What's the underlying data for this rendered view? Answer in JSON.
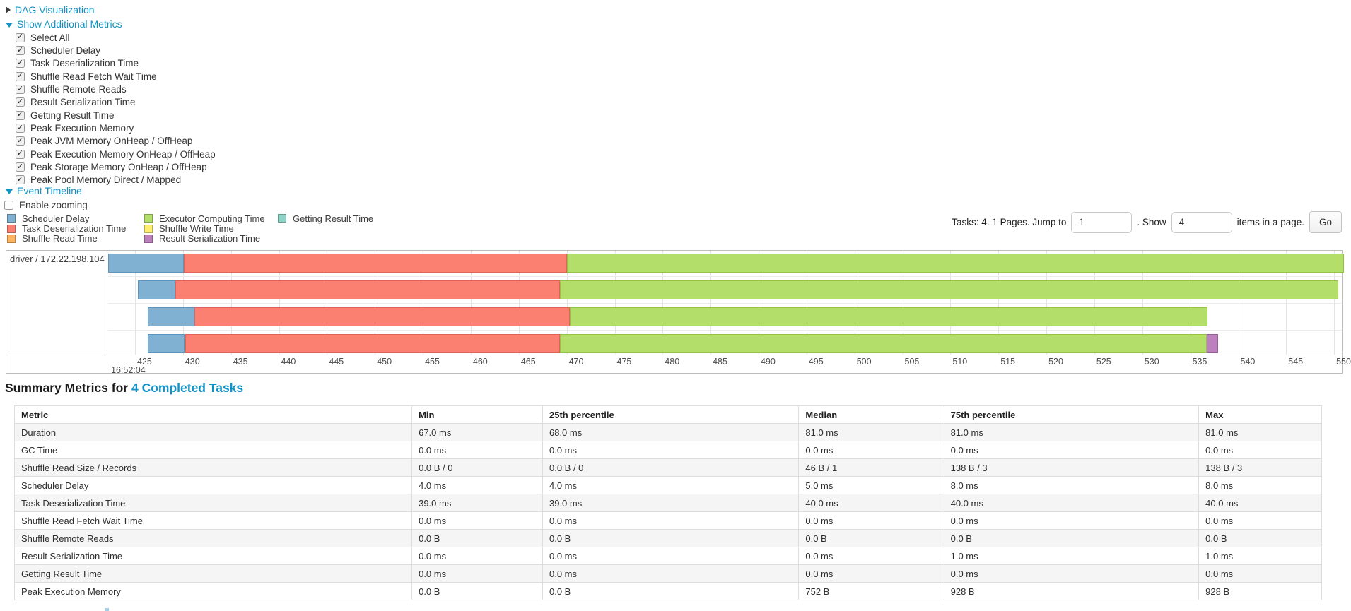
{
  "colors": {
    "link": "#1193c9",
    "table_stripe": "#f5f5f5",
    "table_border": "#dddddd",
    "chart_border": "#bdbdbd",
    "gridline": "#e4e4e4"
  },
  "sections": {
    "dag": {
      "label": "DAG Visualization",
      "expanded": false
    },
    "additional_metrics": {
      "label": "Show Additional Metrics",
      "expanded": true
    },
    "event_timeline": {
      "label": "Event Timeline",
      "expanded": true
    }
  },
  "additional_metrics": {
    "items": [
      {
        "label": "Select All",
        "checked": true
      },
      {
        "label": "Scheduler Delay",
        "checked": true
      },
      {
        "label": "Task Deserialization Time",
        "checked": true
      },
      {
        "label": "Shuffle Read Fetch Wait Time",
        "checked": true
      },
      {
        "label": "Shuffle Remote Reads",
        "checked": true
      },
      {
        "label": "Result Serialization Time",
        "checked": true
      },
      {
        "label": "Getting Result Time",
        "checked": true
      },
      {
        "label": "Peak Execution Memory",
        "checked": true
      },
      {
        "label": "Peak JVM Memory OnHeap / OffHeap",
        "checked": true
      },
      {
        "label": "Peak Execution Memory OnHeap / OffHeap",
        "checked": true
      },
      {
        "label": "Peak Storage Memory OnHeap / OffHeap",
        "checked": true
      },
      {
        "label": "Peak Pool Memory Direct / Mapped",
        "checked": true
      }
    ]
  },
  "enable_zooming": {
    "label": "Enable zooming",
    "checked": false
  },
  "pagination": {
    "prefix": "Tasks: 4. 1 Pages. Jump to",
    "jump_value": "1",
    "middle": ". Show",
    "show_value": "4",
    "suffix": "items in a page.",
    "go_label": "Go"
  },
  "chart_data": {
    "type": "timeline",
    "title": "Event Timeline",
    "group_label": "driver / 172.22.198.104",
    "axis": {
      "major_label": "16:52:04",
      "domain_ms": [
        422.2,
        550.8
      ],
      "tick_start": 425,
      "tick_end": 550,
      "tick_step": 5
    },
    "legend_columns": [
      [
        {
          "label": "Scheduler Delay",
          "type": "scheduler-delay"
        },
        {
          "label": "Task Deserialization Time",
          "type": "task-deserialization"
        },
        {
          "label": "Shuffle Read Time",
          "type": "shuffle-read"
        }
      ],
      [
        {
          "label": "Executor Computing Time",
          "type": "executor-computing"
        },
        {
          "label": "Shuffle Write Time",
          "type": "shuffle-write"
        },
        {
          "label": "Result Serialization Time",
          "type": "result-serialization"
        }
      ],
      [
        {
          "label": "Getting Result Time",
          "type": "getting-result"
        }
      ]
    ],
    "series_colors": {
      "scheduler-delay": {
        "fill": "#80B1D3",
        "border": "#5e93bb"
      },
      "task-deserialization": {
        "fill": "#FB8072",
        "border": "#e0635a"
      },
      "shuffle-read": {
        "fill": "#FDB462",
        "border": "#de9341"
      },
      "executor-computing": {
        "fill": "#B3DE69",
        "border": "#94c447"
      },
      "shuffle-write": {
        "fill": "#FFED6F",
        "border": "#e3cf4b"
      },
      "result-serialization": {
        "fill": "#BC80BD",
        "border": "#9c5d9e"
      },
      "getting-result": {
        "fill": "#8DD3C7",
        "border": "#69b6a8"
      }
    },
    "tasks": [
      {
        "segments": [
          {
            "type": "scheduler-delay",
            "start": 422.2,
            "end": 430.1
          },
          {
            "type": "task-deserialization",
            "start": 430.1,
            "end": 470.0
          },
          {
            "type": "executor-computing",
            "start": 470.0,
            "end": 551.0
          }
        ]
      },
      {
        "segments": [
          {
            "type": "scheduler-delay",
            "start": 425.3,
            "end": 429.2
          },
          {
            "type": "task-deserialization",
            "start": 429.2,
            "end": 469.3
          },
          {
            "type": "executor-computing",
            "start": 469.3,
            "end": 550.4
          }
        ]
      },
      {
        "segments": [
          {
            "type": "scheduler-delay",
            "start": 426.3,
            "end": 431.2
          },
          {
            "type": "task-deserialization",
            "start": 431.2,
            "end": 470.3
          },
          {
            "type": "executor-computing",
            "start": 470.3,
            "end": 536.8
          }
        ]
      },
      {
        "segments": [
          {
            "type": "scheduler-delay",
            "start": 426.3,
            "end": 430.2
          },
          {
            "type": "task-deserialization",
            "start": 430.2,
            "end": 469.3
          },
          {
            "type": "executor-computing",
            "start": 469.3,
            "end": 536.7
          },
          {
            "type": "result-serialization",
            "start": 536.7,
            "end": 537.9
          }
        ]
      }
    ]
  },
  "summary": {
    "title_prefix": "Summary Metrics for",
    "title_link": "4 Completed Tasks",
    "table": {
      "headers": [
        "Metric",
        "Min",
        "25th percentile",
        "Median",
        "75th percentile",
        "Max"
      ],
      "rows": [
        [
          "Duration",
          "67.0 ms",
          "68.0 ms",
          "81.0 ms",
          "81.0 ms",
          "81.0 ms"
        ],
        [
          "GC Time",
          "0.0 ms",
          "0.0 ms",
          "0.0 ms",
          "0.0 ms",
          "0.0 ms"
        ],
        [
          "Shuffle Read Size / Records",
          "0.0 B / 0",
          "0.0 B / 0",
          "46 B / 1",
          "138 B / 3",
          "138 B / 3"
        ],
        [
          "Scheduler Delay",
          "4.0 ms",
          "4.0 ms",
          "5.0 ms",
          "8.0 ms",
          "8.0 ms"
        ],
        [
          "Task Deserialization Time",
          "39.0 ms",
          "39.0 ms",
          "40.0 ms",
          "40.0 ms",
          "40.0 ms"
        ],
        [
          "Shuffle Read Fetch Wait Time",
          "0.0 ms",
          "0.0 ms",
          "0.0 ms",
          "0.0 ms",
          "0.0 ms"
        ],
        [
          "Shuffle Remote Reads",
          "0.0 B",
          "0.0 B",
          "0.0 B",
          "0.0 B",
          "0.0 B"
        ],
        [
          "Result Serialization Time",
          "0.0 ms",
          "0.0 ms",
          "0.0 ms",
          "1.0 ms",
          "1.0 ms"
        ],
        [
          "Getting Result Time",
          "0.0 ms",
          "0.0 ms",
          "0.0 ms",
          "0.0 ms",
          "0.0 ms"
        ],
        [
          "Peak Execution Memory",
          "0.0 B",
          "0.0 B",
          "752 B",
          "928 B",
          "928 B"
        ]
      ]
    }
  }
}
